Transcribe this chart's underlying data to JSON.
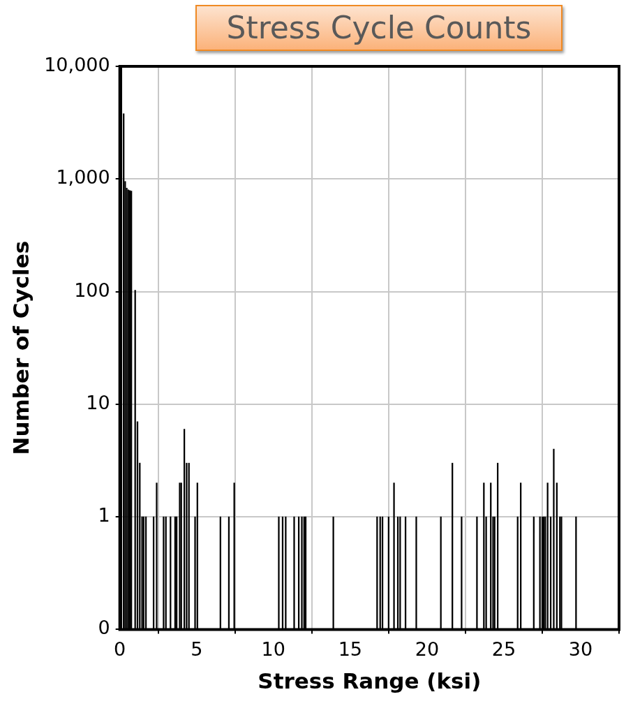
{
  "chart_data": {
    "type": "bar",
    "title": "Stress Cycle Counts",
    "xlabel": "Stress Range (ksi)",
    "ylabel": "Number of Cycles",
    "x": [
      0.1,
      0.25,
      0.35,
      0.45,
      0.55,
      0.65,
      0.75,
      1.0,
      1.15,
      1.3,
      1.45,
      1.55,
      1.7,
      2.2,
      2.4,
      2.85,
      3.0,
      3.3,
      3.6,
      3.7,
      3.9,
      4.0,
      4.2,
      4.35,
      4.5,
      4.9,
      5.05,
      6.55,
      7.1,
      7.45,
      10.35,
      10.6,
      10.8,
      11.35,
      11.65,
      11.85,
      12.0,
      12.1,
      13.9,
      16.75,
      16.95,
      17.1,
      17.5,
      17.85,
      18.1,
      18.25,
      18.6,
      19.3,
      20.9,
      21.65,
      22.25,
      23.25,
      23.7,
      23.85,
      24.15,
      24.3,
      24.4,
      24.6,
      25.9,
      26.1,
      26.95,
      27.35,
      27.5,
      27.6,
      27.7,
      27.85,
      28.05,
      28.25,
      28.45,
      28.65,
      28.75,
      29.7
    ],
    "values": [
      10000,
      3800,
      950,
      830,
      800,
      790,
      780,
      103,
      7,
      3,
      1,
      1,
      1,
      1,
      2,
      1,
      1,
      1,
      1,
      1,
      2,
      2,
      6,
      3,
      3,
      1,
      2,
      1,
      1,
      2,
      1,
      1,
      1,
      1,
      1,
      1,
      1,
      1,
      1,
      1,
      1,
      1,
      1,
      2,
      1,
      1,
      1,
      1,
      1,
      3,
      1,
      1,
      2,
      1,
      2,
      1,
      1,
      3,
      1,
      2,
      1,
      1,
      1,
      1,
      1,
      2,
      1,
      4,
      2,
      1,
      1,
      1
    ],
    "color": "#000000",
    "log": "y",
    "grid": true,
    "legend": false,
    "xlim": [
      0,
      32.5
    ],
    "xticks": [
      0,
      5,
      10,
      15,
      20,
      25,
      30
    ],
    "ylim": [
      0.1,
      10000
    ],
    "yticks": [
      {
        "value": 0.1,
        "label": "0"
      },
      1,
      10,
      100,
      {
        "value": 1000,
        "label": "1,000"
      },
      {
        "value": 10000,
        "label": "10,000"
      }
    ]
  }
}
